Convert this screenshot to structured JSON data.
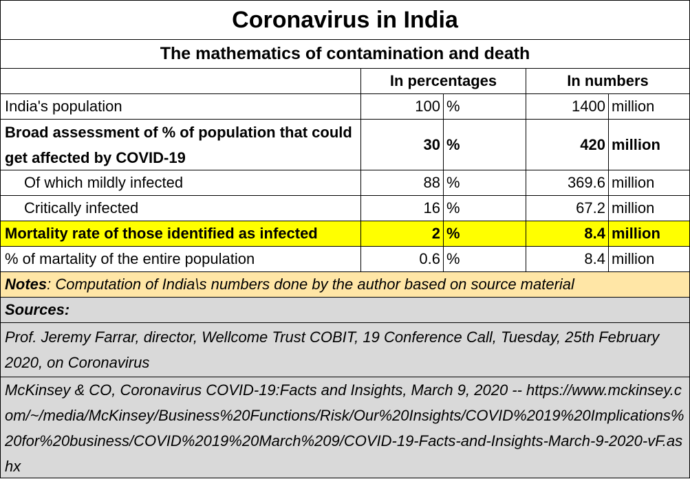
{
  "title": "Coronavirus in India",
  "subtitle": "The mathematics of contamination and death",
  "headers": {
    "percent": "In percentages",
    "numbers": "In numbers"
  },
  "rows": [
    {
      "label": "India's population",
      "pct": "100",
      "pct_unit": "%",
      "num": "1400",
      "num_unit": "million"
    },
    {
      "label": "Broad assessment of % of population that could get affected by COVID-19",
      "pct": "30",
      "pct_unit": "%",
      "num": "420",
      "num_unit": "million"
    },
    {
      "label": "Of which mildly infected",
      "pct": "88",
      "pct_unit": "%",
      "num": "369.6",
      "num_unit": "million"
    },
    {
      "label": "Critically infected",
      "pct": "16",
      "pct_unit": "%",
      "num": "67.2",
      "num_unit": "million"
    },
    {
      "label": "Mortality rate of those identified as infected",
      "pct": "2",
      "pct_unit": "%",
      "num": "8.4",
      "num_unit": "million"
    },
    {
      "label": "% of martality of the entire population",
      "pct": "0.6",
      "pct_unit": "%",
      "num": "8.4",
      "num_unit": "million"
    }
  ],
  "notes": {
    "label": "Notes",
    "text": " : Computation of India\\s numbers done by the author based on source material"
  },
  "sources": {
    "label": "Sources:",
    "items": [
      "Prof. Jeremy Farrar, director, Wellcome Trust COBIT,  19 Conference Call, Tuesday, 25th February 2020, on Coronavirus",
      "McKinsey & CO, Coronavirus COVID-19:Facts and Insights, March 9, 2020 -- https://www.mckinsey.com/~/media/McKinsey/Business%20Functions/Risk/Our%20Insights/COVID%2019%20Implications%20for%20business/COVID%2019%20March%209/COVID-19-Facts-and-Insights-March-9-2020-vF.ashx"
    ]
  },
  "colors": {
    "highlight": "#ffff00",
    "notes_bg": "#ffe6a6",
    "sources_bg": "#d9d9d9"
  }
}
